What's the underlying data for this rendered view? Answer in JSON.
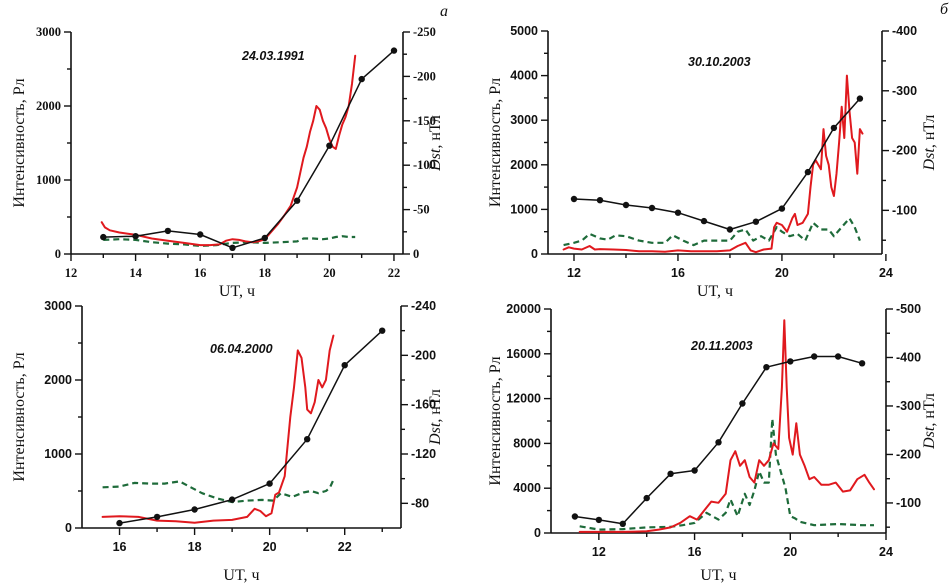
{
  "figure": {
    "panel_letters": [
      "а",
      "б"
    ]
  },
  "chart_data": [
    {
      "type": "line",
      "id": "a",
      "panel_letter": "а",
      "title": "24.03.1991",
      "xlabel": "UT, ч",
      "ylabel": "Интенсивность, Рл",
      "y2label_italic": "Dst",
      "y2label_rest": ", нТл",
      "xlim": [
        12,
        22.28
      ],
      "ylim": [
        0,
        3000
      ],
      "y2lim": [
        0,
        -250
      ],
      "xticks": [
        12,
        14,
        16,
        18,
        20,
        22
      ],
      "xminor": [
        13,
        15,
        17,
        19,
        21
      ],
      "yticks": [
        0,
        1000,
        2000,
        3000
      ],
      "yminor": [
        500,
        1500,
        2500
      ],
      "y2ticks": [
        0,
        -50,
        -100,
        -150,
        -200,
        -250
      ],
      "y2minor": [
        -25,
        -75,
        -125,
        -175,
        -225
      ],
      "tick_font": "serif",
      "series": [
        {
          "name": "intensity-red",
          "axis": "left",
          "color": "#e0191e",
          "style": "solid",
          "x": [
            12.95,
            13.05,
            13.2,
            13.5,
            14.0,
            14.5,
            15.0,
            15.5,
            16.0,
            16.3,
            16.6,
            16.8,
            17.0,
            17.2,
            17.4,
            17.6,
            17.8,
            18.0,
            18.2,
            18.4,
            18.6,
            18.8,
            19.0,
            19.1,
            19.2,
            19.3,
            19.4,
            19.5,
            19.6,
            19.7,
            19.8,
            19.9,
            20.0,
            20.1,
            20.2,
            20.3,
            20.4,
            20.5,
            20.6,
            20.7,
            20.8
          ],
          "y": [
            430,
            360,
            320,
            290,
            260,
            210,
            180,
            150,
            120,
            120,
            130,
            180,
            200,
            190,
            170,
            160,
            170,
            200,
            300,
            400,
            520,
            650,
            900,
            1100,
            1300,
            1450,
            1650,
            1800,
            2000,
            1950,
            1800,
            1700,
            1550,
            1450,
            1420,
            1600,
            1750,
            1850,
            2000,
            2300,
            2680
          ]
        },
        {
          "name": "green-dashed",
          "axis": "left",
          "color": "#1e6b3a",
          "style": "dashed",
          "x": [
            13.0,
            13.5,
            14.0,
            14.5,
            15.0,
            15.5,
            16.0,
            16.5,
            17.0,
            17.5,
            18.0,
            18.5,
            19.0,
            19.2,
            19.5,
            19.8,
            20.0,
            20.2,
            20.4,
            20.6,
            20.8
          ],
          "y": [
            190,
            200,
            190,
            160,
            140,
            130,
            110,
            120,
            150,
            160,
            150,
            160,
            170,
            210,
            210,
            200,
            210,
            230,
            240,
            230,
            230
          ]
        },
        {
          "name": "dst-black",
          "axis": "right",
          "color": "#111111",
          "style": "solid-markers",
          "x": [
            13,
            14,
            15,
            16,
            17,
            18,
            19,
            20,
            21,
            22
          ],
          "y": [
            -19,
            -20,
            -26,
            -22,
            -7,
            -18,
            -60,
            -122,
            -197,
            -229
          ]
        }
      ]
    },
    {
      "type": "line",
      "id": "b",
      "panel_letter": "б",
      "title": "30.10.2003",
      "xlabel": "UT, ч",
      "ylabel": "Интенсивность, Рл",
      "y2label_italic": "Dst",
      "y2label_rest": ", нТл",
      "xlim": [
        11.0,
        23.85
      ],
      "ylim": [
        0,
        5000
      ],
      "y2lim": [
        -27,
        -400
      ],
      "xticks": [
        12,
        16,
        20,
        24
      ],
      "xminor": [
        14,
        18,
        22
      ],
      "yticks": [
        0,
        1000,
        2000,
        3000,
        4000,
        5000
      ],
      "yminor": [
        500,
        1500,
        2500,
        3500,
        4500
      ],
      "y2ticks": [
        -100,
        -200,
        -300,
        -400
      ],
      "y2minor": [
        -50,
        -150,
        -250,
        -350
      ],
      "tick_font": "sans",
      "series": [
        {
          "name": "intensity-red",
          "axis": "left",
          "color": "#e0191e",
          "style": "solid",
          "x": [
            11.6,
            11.8,
            12.0,
            12.3,
            12.6,
            12.8,
            13.0,
            13.5,
            14.0,
            14.5,
            15.0,
            15.5,
            16.0,
            16.5,
            17.0,
            17.5,
            18.0,
            18.3,
            18.6,
            18.8,
            19.0,
            19.3,
            19.6,
            19.7,
            19.8,
            20.0,
            20.2,
            20.4,
            20.5,
            20.6,
            20.8,
            21.0,
            21.1,
            21.2,
            21.3,
            21.5,
            21.6,
            21.7,
            21.8,
            21.9,
            22.0,
            22.1,
            22.2,
            22.3,
            22.4,
            22.5,
            22.6,
            22.7,
            22.8,
            22.9,
            23.0,
            23.1
          ],
          "y": [
            100,
            150,
            120,
            100,
            180,
            100,
            110,
            100,
            90,
            60,
            60,
            50,
            80,
            60,
            60,
            60,
            80,
            180,
            250,
            80,
            40,
            100,
            120,
            600,
            700,
            650,
            500,
            800,
            900,
            650,
            700,
            900,
            1500,
            2000,
            2100,
            1900,
            2800,
            2200,
            2000,
            1500,
            1300,
            1800,
            2500,
            3300,
            2600,
            4000,
            3200,
            2600,
            2500,
            1800,
            2800,
            2700
          ]
        },
        {
          "name": "green-dashed",
          "axis": "left",
          "color": "#1e6b3a",
          "style": "dashed",
          "x": [
            11.6,
            12.0,
            12.3,
            12.6,
            13.0,
            13.3,
            13.6,
            14.0,
            14.5,
            15.0,
            15.5,
            15.8,
            16.2,
            16.6,
            17.0,
            17.5,
            18.0,
            18.3,
            18.6,
            18.9,
            19.2,
            19.5,
            19.8,
            20.0,
            20.3,
            20.6,
            20.9,
            21.2,
            21.5,
            21.8,
            22.0,
            22.3,
            22.6,
            22.8,
            23.0
          ],
          "y": [
            200,
            250,
            300,
            450,
            350,
            320,
            420,
            400,
            300,
            250,
            250,
            420,
            300,
            200,
            300,
            300,
            300,
            500,
            550,
            300,
            400,
            300,
            600,
            500,
            400,
            450,
            300,
            700,
            550,
            550,
            400,
            600,
            800,
            600,
            300
          ]
        },
        {
          "name": "dst-black",
          "axis": "right",
          "color": "#111111",
          "style": "solid-markers",
          "x": [
            12,
            13,
            14,
            15,
            16,
            17,
            18,
            19,
            20,
            21,
            22,
            23
          ],
          "y": [
            -119,
            -117,
            -109,
            -104,
            -96,
            -82,
            -68,
            -81,
            -103,
            -164,
            -238,
            -287
          ]
        }
      ]
    },
    {
      "type": "line",
      "id": "c",
      "panel_letter": "",
      "title": "06.04.2000",
      "xlabel": "UT, ч",
      "ylabel": "Интенсивность, Рл",
      "y2label_italic": "Dst",
      "y2label_rest": ", нТл",
      "xlim": [
        15.0,
        23.5
      ],
      "ylim": [
        0,
        3000
      ],
      "y2lim": [
        -60,
        -240
      ],
      "xticks": [
        16,
        18,
        20,
        22
      ],
      "xminor": [
        17,
        19,
        21,
        23
      ],
      "yticks": [
        0,
        1000,
        2000,
        3000
      ],
      "yminor": [
        500,
        1500,
        2500
      ],
      "y2ticks": [
        -80,
        -120,
        -160,
        -200,
        -240
      ],
      "y2minor": [
        -100,
        -140,
        -180,
        -220
      ],
      "tick_font": "sans",
      "series": [
        {
          "name": "intensity-red",
          "axis": "left",
          "color": "#e0191e",
          "style": "solid",
          "x": [
            15.55,
            16.0,
            16.5,
            17.0,
            17.5,
            18.0,
            18.5,
            19.0,
            19.4,
            19.6,
            19.75,
            19.9,
            20.05,
            20.15,
            20.25,
            20.4,
            20.55,
            20.65,
            20.75,
            20.85,
            20.95,
            21.0,
            21.1,
            21.2,
            21.3,
            21.4,
            21.5,
            21.6,
            21.7
          ],
          "y": [
            150,
            160,
            150,
            100,
            90,
            70,
            100,
            110,
            150,
            260,
            230,
            160,
            200,
            450,
            480,
            700,
            1500,
            1900,
            2400,
            2300,
            1900,
            1600,
            1550,
            1700,
            2000,
            1900,
            2000,
            2400,
            2600
          ]
        },
        {
          "name": "green-dashed",
          "axis": "left",
          "color": "#1e6b3a",
          "style": "dashed",
          "x": [
            15.55,
            16.0,
            16.4,
            16.8,
            17.2,
            17.6,
            17.9,
            18.2,
            18.6,
            19.0,
            19.4,
            19.8,
            20.1,
            20.3,
            20.6,
            20.9,
            21.1,
            21.3,
            21.5,
            21.6,
            21.7
          ],
          "y": [
            550,
            560,
            610,
            600,
            600,
            630,
            550,
            470,
            400,
            350,
            370,
            380,
            370,
            470,
            420,
            480,
            500,
            470,
            500,
            540,
            650
          ]
        },
        {
          "name": "dst-black",
          "axis": "right",
          "color": "#111111",
          "style": "solid-markers",
          "x": [
            16,
            17,
            18,
            19,
            20,
            21,
            22,
            23
          ],
          "y": [
            -64,
            -69,
            -75,
            -83,
            -96,
            -132,
            -192,
            -220
          ]
        }
      ]
    },
    {
      "type": "line",
      "id": "d",
      "panel_letter": "",
      "title": "20.11.2003",
      "xlabel": "UT, ч",
      "ylabel": "Интенсивность, Рл",
      "y2label_italic": "Dst",
      "y2label_rest": ", нТл",
      "xlim": [
        10.0,
        24.0
      ],
      "ylim": [
        0,
        20000
      ],
      "y2lim": [
        -38,
        -500
      ],
      "xticks": [
        12,
        16,
        20,
        24
      ],
      "xminor": [
        14,
        18,
        22
      ],
      "yticks": [
        0,
        4000,
        8000,
        12000,
        16000,
        20000
      ],
      "yminor": [
        2000,
        6000,
        10000,
        14000,
        18000
      ],
      "y2ticks": [
        -100,
        -200,
        -300,
        -400,
        -500
      ],
      "y2minor": [
        -50,
        -150,
        -250,
        -350,
        -450
      ],
      "tick_font": "sans",
      "series": [
        {
          "name": "intensity-red",
          "axis": "left",
          "color": "#e0191e",
          "style": "solid",
          "x": [
            11.2,
            12.0,
            13.0,
            14.0,
            14.5,
            15.0,
            15.4,
            15.8,
            16.1,
            16.4,
            16.7,
            17.0,
            17.3,
            17.5,
            17.7,
            17.9,
            18.1,
            18.3,
            18.5,
            18.7,
            18.9,
            19.1,
            19.3,
            19.5,
            19.65,
            19.75,
            19.85,
            19.95,
            20.1,
            20.25,
            20.4,
            20.6,
            20.8,
            21.0,
            21.3,
            21.6,
            21.9,
            22.2,
            22.5,
            22.8,
            23.1,
            23.3,
            23.5
          ],
          "y": [
            100,
            100,
            100,
            150,
            300,
            500,
            900,
            1500,
            1200,
            2000,
            2800,
            2700,
            3500,
            6500,
            7300,
            6000,
            6500,
            5000,
            4500,
            6500,
            6000,
            6500,
            8000,
            7500,
            13000,
            19000,
            13000,
            8500,
            7000,
            9800,
            7000,
            6000,
            4800,
            5000,
            4300,
            4300,
            4500,
            3700,
            3800,
            4800,
            5200,
            4500,
            3900
          ]
        },
        {
          "name": "green-dashed",
          "axis": "left",
          "color": "#1e6b3a",
          "style": "dashed",
          "x": [
            11.2,
            12.0,
            13.0,
            14.0,
            15.0,
            15.5,
            16.0,
            16.5,
            17.0,
            17.3,
            17.5,
            17.8,
            18.1,
            18.3,
            18.5,
            18.7,
            18.9,
            19.1,
            19.25,
            19.4,
            19.6,
            19.8,
            20.0,
            20.2,
            20.4,
            21.0,
            22.0,
            23.0,
            23.5
          ],
          "y": [
            600,
            300,
            350,
            500,
            550,
            700,
            900,
            1800,
            1200,
            1800,
            3000,
            1500,
            3500,
            2500,
            3800,
            5500,
            4500,
            4500,
            10200,
            7000,
            5500,
            4000,
            1500,
            1300,
            1000,
            700,
            800,
            700,
            700
          ]
        },
        {
          "name": "dst-black",
          "axis": "right",
          "color": "#111111",
          "style": "solid-markers",
          "x": [
            11,
            12,
            13,
            14,
            15,
            16,
            17,
            18,
            19,
            20,
            21,
            22,
            23
          ],
          "y": [
            -72,
            -65,
            -57,
            -110,
            -160,
            -167,
            -225,
            -305,
            -380,
            -392,
            -402,
            -402,
            -388
          ]
        }
      ]
    }
  ]
}
